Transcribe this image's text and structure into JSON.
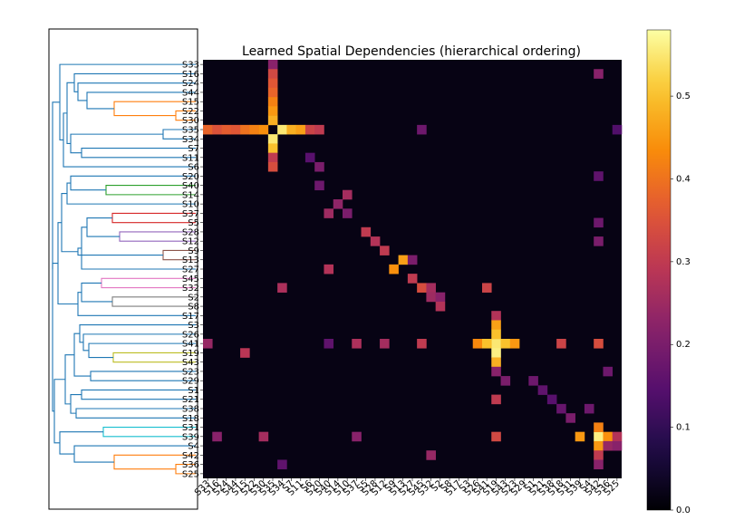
{
  "chart_data": {
    "type": "heatmap",
    "title": "Learned Spatial Dependencies (hierarchical ordering)",
    "xlabel": "",
    "ylabel": "",
    "colormap": "inferno",
    "value_range": [
      0.0,
      0.58
    ],
    "colorbar_ticks": [
      "0.0",
      "0.1",
      "0.2",
      "0.3",
      "0.4",
      "0.5"
    ],
    "labels": [
      "S33",
      "S16",
      "S24",
      "S44",
      "S15",
      "S22",
      "S30",
      "S35",
      "S34",
      "S7",
      "S11",
      "S6",
      "S20",
      "S40",
      "S14",
      "S10",
      "S37",
      "S5",
      "S28",
      "S12",
      "S9",
      "S13",
      "S27",
      "S45",
      "S32",
      "S2",
      "S8",
      "S17",
      "S3",
      "S26",
      "S41",
      "S19",
      "S43",
      "S23",
      "S29",
      "S1",
      "S21",
      "S38",
      "S18",
      "S31",
      "S39",
      "S4",
      "S42",
      "S36",
      "S25"
    ],
    "cells": [
      {
        "row": "S35",
        "col": "S34",
        "value": 0.55
      },
      {
        "row": "S35",
        "col": "S33",
        "value": 0.38
      },
      {
        "row": "S35",
        "col": "S16",
        "value": 0.35
      },
      {
        "row": "S35",
        "col": "S24",
        "value": 0.37
      },
      {
        "row": "S35",
        "col": "S44",
        "value": 0.36
      },
      {
        "row": "S35",
        "col": "S15",
        "value": 0.4
      },
      {
        "row": "S35",
        "col": "S22",
        "value": 0.42
      },
      {
        "row": "S35",
        "col": "S30",
        "value": 0.44
      },
      {
        "row": "S35",
        "col": "S7",
        "value": 0.48
      },
      {
        "row": "S35",
        "col": "S11",
        "value": 0.46
      },
      {
        "row": "S35",
        "col": "S6",
        "value": 0.32
      },
      {
        "row": "S35",
        "col": "S20",
        "value": 0.3
      },
      {
        "row": "S33",
        "col": "S35",
        "value": 0.22
      },
      {
        "row": "S16",
        "col": "S35",
        "value": 0.33
      },
      {
        "row": "S24",
        "col": "S35",
        "value": 0.36
      },
      {
        "row": "S44",
        "col": "S35",
        "value": 0.38
      },
      {
        "row": "S15",
        "col": "S35",
        "value": 0.42
      },
      {
        "row": "S22",
        "col": "S35",
        "value": 0.45
      },
      {
        "row": "S30",
        "col": "S35",
        "value": 0.48
      },
      {
        "row": "S34",
        "col": "S35",
        "value": 0.55
      },
      {
        "row": "S7",
        "col": "S35",
        "value": 0.5
      },
      {
        "row": "S11",
        "col": "S35",
        "value": 0.3
      },
      {
        "row": "S6",
        "col": "S35",
        "value": 0.34
      },
      {
        "row": "S41",
        "col": "S19",
        "value": 0.55
      },
      {
        "row": "S41",
        "col": "S26",
        "value": 0.43
      },
      {
        "row": "S41",
        "col": "S41",
        "value": 0.5
      },
      {
        "row": "S41",
        "col": "S43",
        "value": 0.5
      },
      {
        "row": "S41",
        "col": "S23",
        "value": 0.45
      },
      {
        "row": "S41",
        "col": "S33",
        "value": 0.24
      },
      {
        "row": "S41",
        "col": "S12",
        "value": 0.26
      },
      {
        "row": "S41",
        "col": "S45",
        "value": 0.3
      },
      {
        "row": "S41",
        "col": "S18",
        "value": 0.32
      },
      {
        "row": "S41",
        "col": "S42",
        "value": 0.34
      },
      {
        "row": "S41",
        "col": "S37",
        "value": 0.27
      },
      {
        "row": "S17",
        "col": "S19",
        "value": 0.28
      },
      {
        "row": "S3",
        "col": "S19",
        "value": 0.46
      },
      {
        "row": "S26",
        "col": "S19",
        "value": 0.5
      },
      {
        "row": "S19",
        "col": "S19",
        "value": 0.56
      },
      {
        "row": "S43",
        "col": "S19",
        "value": 0.48
      },
      {
        "row": "S23",
        "col": "S19",
        "value": 0.22
      },
      {
        "row": "S21",
        "col": "S19",
        "value": 0.3
      },
      {
        "row": "S39",
        "col": "S19",
        "value": 0.33
      },
      {
        "row": "S19",
        "col": "S15",
        "value": 0.29
      },
      {
        "row": "S39",
        "col": "S42",
        "value": 0.56
      },
      {
        "row": "S39",
        "col": "S39",
        "value": 0.45
      },
      {
        "row": "S39",
        "col": "S36",
        "value": 0.44
      },
      {
        "row": "S39",
        "col": "S25",
        "value": 0.28
      },
      {
        "row": "S39",
        "col": "S30",
        "value": 0.26
      },
      {
        "row": "S39",
        "col": "S37",
        "value": 0.22
      },
      {
        "row": "S39",
        "col": "S16",
        "value": 0.22
      },
      {
        "row": "S31",
        "col": "S42",
        "value": 0.42
      },
      {
        "row": "S4",
        "col": "S42",
        "value": 0.45
      },
      {
        "row": "S42",
        "col": "S42",
        "value": 0.3
      },
      {
        "row": "S4",
        "col": "S36",
        "value": 0.24
      },
      {
        "row": "S4",
        "col": "S25",
        "value": 0.22
      },
      {
        "row": "S13",
        "col": "S13",
        "value": 0.46
      },
      {
        "row": "S13",
        "col": "S27",
        "value": 0.2
      },
      {
        "row": "S27",
        "col": "S9",
        "value": 0.44
      },
      {
        "row": "S27",
        "col": "S40",
        "value": 0.28
      },
      {
        "row": "S45",
        "col": "S27",
        "value": 0.3
      },
      {
        "row": "S32",
        "col": "S45",
        "value": 0.34
      },
      {
        "row": "S32",
        "col": "S32",
        "value": 0.26
      },
      {
        "row": "S2",
        "col": "S32",
        "value": 0.25
      },
      {
        "row": "S2",
        "col": "S2",
        "value": 0.22
      },
      {
        "row": "S8",
        "col": "S2",
        "value": 0.28
      },
      {
        "row": "S32",
        "col": "S41",
        "value": 0.32
      },
      {
        "row": "S32",
        "col": "S34",
        "value": 0.27
      },
      {
        "row": "S28",
        "col": "S5",
        "value": 0.3
      },
      {
        "row": "S12",
        "col": "S28",
        "value": 0.28
      },
      {
        "row": "S9",
        "col": "S12",
        "value": 0.3
      },
      {
        "row": "S37",
        "col": "S40",
        "value": 0.25
      },
      {
        "row": "S37",
        "col": "S10",
        "value": 0.2
      },
      {
        "row": "S10",
        "col": "S14",
        "value": 0.23
      },
      {
        "row": "S14",
        "col": "S10",
        "value": 0.26
      },
      {
        "row": "S40",
        "col": "S20",
        "value": 0.18
      },
      {
        "row": "S6",
        "col": "S20",
        "value": 0.2
      },
      {
        "row": "S11",
        "col": "S6",
        "value": 0.15
      },
      {
        "row": "S29",
        "col": "S1",
        "value": 0.18
      },
      {
        "row": "S1",
        "col": "S21",
        "value": 0.16
      },
      {
        "row": "S21",
        "col": "S38",
        "value": 0.15
      },
      {
        "row": "S38",
        "col": "S18",
        "value": 0.17
      },
      {
        "row": "S18",
        "col": "S31",
        "value": 0.2
      },
      {
        "row": "S29",
        "col": "S43",
        "value": 0.2
      },
      {
        "row": "S23",
        "col": "S36",
        "value": 0.18
      },
      {
        "row": "S38",
        "col": "S4",
        "value": 0.18
      },
      {
        "row": "S16",
        "col": "S42",
        "value": 0.22
      },
      {
        "row": "S20",
        "col": "S42",
        "value": 0.16
      },
      {
        "row": "S5",
        "col": "S42",
        "value": 0.18
      },
      {
        "row": "S12",
        "col": "S42",
        "value": 0.2
      },
      {
        "row": "S36",
        "col": "S42",
        "value": 0.22
      },
      {
        "row": "S36",
        "col": "S34",
        "value": 0.16
      },
      {
        "row": "S42",
        "col": "S32",
        "value": 0.24
      },
      {
        "row": "S35",
        "col": "S25",
        "value": 0.14
      },
      {
        "row": "S35",
        "col": "S45",
        "value": 0.18
      },
      {
        "row": "S41",
        "col": "S40",
        "value": 0.16
      }
    ]
  }
}
